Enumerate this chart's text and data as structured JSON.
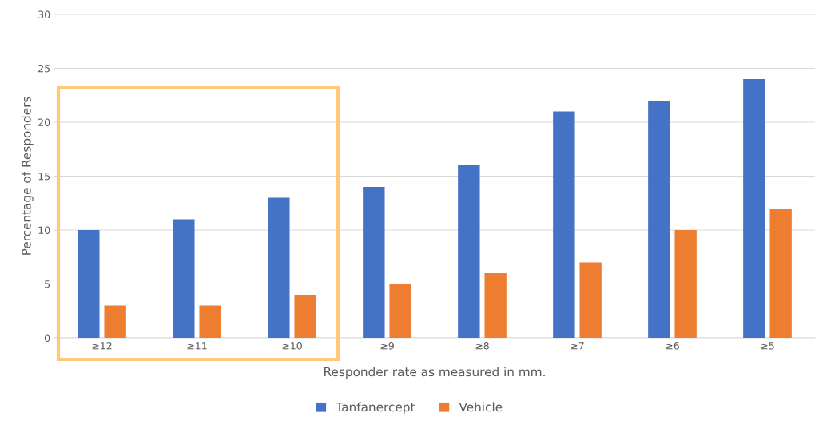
{
  "chart_data": {
    "type": "bar",
    "xlabel": "Responder rate as measured in mm.",
    "ylabel": "Percentage of Responders",
    "categories": [
      "≥12",
      "≥11",
      "≥10",
      "≥9",
      "≥8",
      "≥7",
      "≥6",
      "≥5"
    ],
    "series": [
      {
        "name": "Tanfanercept",
        "color": "#4472c4",
        "values": [
          10,
          11,
          13,
          14,
          16,
          21,
          22,
          24
        ]
      },
      {
        "name": "Vehicle",
        "color": "#ed7d31",
        "values": [
          3,
          3,
          4,
          5,
          6,
          7,
          10,
          12
        ]
      }
    ],
    "ylim": [
      0,
      30
    ],
    "yticks": [
      0,
      5,
      10,
      15,
      20,
      25,
      30
    ],
    "grid": "y",
    "legend": "bottom"
  }
}
